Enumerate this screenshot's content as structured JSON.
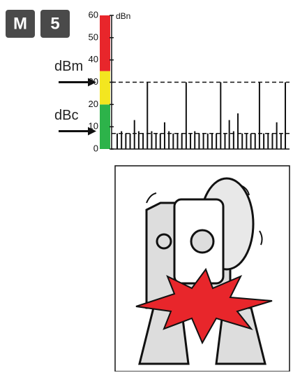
{
  "badges": [
    "M",
    "5"
  ],
  "chart_data": {
    "type": "bar",
    "ylabel": "dBn",
    "values": [
      7,
      8,
      7,
      7,
      13,
      8,
      7,
      30,
      8,
      7,
      7,
      12,
      8,
      7,
      7,
      7,
      30,
      7,
      8,
      7,
      7,
      7,
      7,
      7,
      30,
      7,
      13,
      8,
      16,
      7,
      7,
      7,
      7,
      30,
      7,
      7,
      7,
      12,
      7,
      30
    ],
    "color": "#111111",
    "ylim": [
      0,
      60
    ],
    "yticks": [
      0,
      10,
      20,
      30,
      40,
      50,
      60
    ],
    "scale_bands": [
      {
        "from": 0,
        "to": 20,
        "color": "#2db34a"
      },
      {
        "from": 20,
        "to": 35,
        "color": "#f3e620"
      },
      {
        "from": 35,
        "to": 60,
        "color": "#e8262b"
      }
    ],
    "reference_lines": [
      30,
      7
    ],
    "annotations": [
      {
        "text": "dBm",
        "value": 30
      },
      {
        "text": "dBc",
        "value": 8
      }
    ]
  }
}
